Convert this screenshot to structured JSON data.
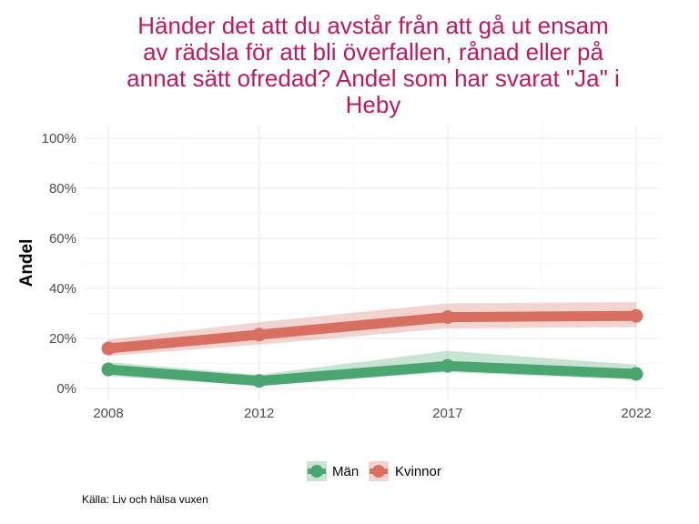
{
  "chart_data": {
    "type": "line",
    "title_lines": [
      "Händer det att du avstår från att gå ut ensam",
      "av rädsla för att bli överfallen, rånad eller på",
      "annat sätt ofredad? Andel som har svarat \"Ja\" i",
      "Heby"
    ],
    "xlabel": "",
    "ylabel": "Andel",
    "x": [
      2008,
      2012,
      2017,
      2022
    ],
    "x_tick_labels": [
      "2008",
      "2012",
      "2017",
      "2022"
    ],
    "ylim": [
      0,
      1
    ],
    "y_ticks": [
      0,
      0.2,
      0.4,
      0.6,
      0.8,
      1.0
    ],
    "y_tick_labels": [
      "0%",
      "20%",
      "40%",
      "60%",
      "80%",
      "100%"
    ],
    "series": [
      {
        "name": "Män",
        "color": "#4aa570",
        "values": [
          0.076,
          0.03,
          0.09,
          0.058
        ],
        "lower": [
          0.05,
          0.01,
          0.065,
          0.035
        ],
        "upper": [
          0.105,
          0.055,
          0.15,
          0.095
        ]
      },
      {
        "name": "Kvinnor",
        "color": "#d87062",
        "values": [
          0.16,
          0.215,
          0.285,
          0.29
        ],
        "lower": [
          0.13,
          0.175,
          0.24,
          0.245
        ],
        "upper": [
          0.195,
          0.265,
          0.34,
          0.345
        ]
      }
    ],
    "legend_position": "bottom",
    "caption": "Källa: Liv och hälsa vuxen"
  }
}
